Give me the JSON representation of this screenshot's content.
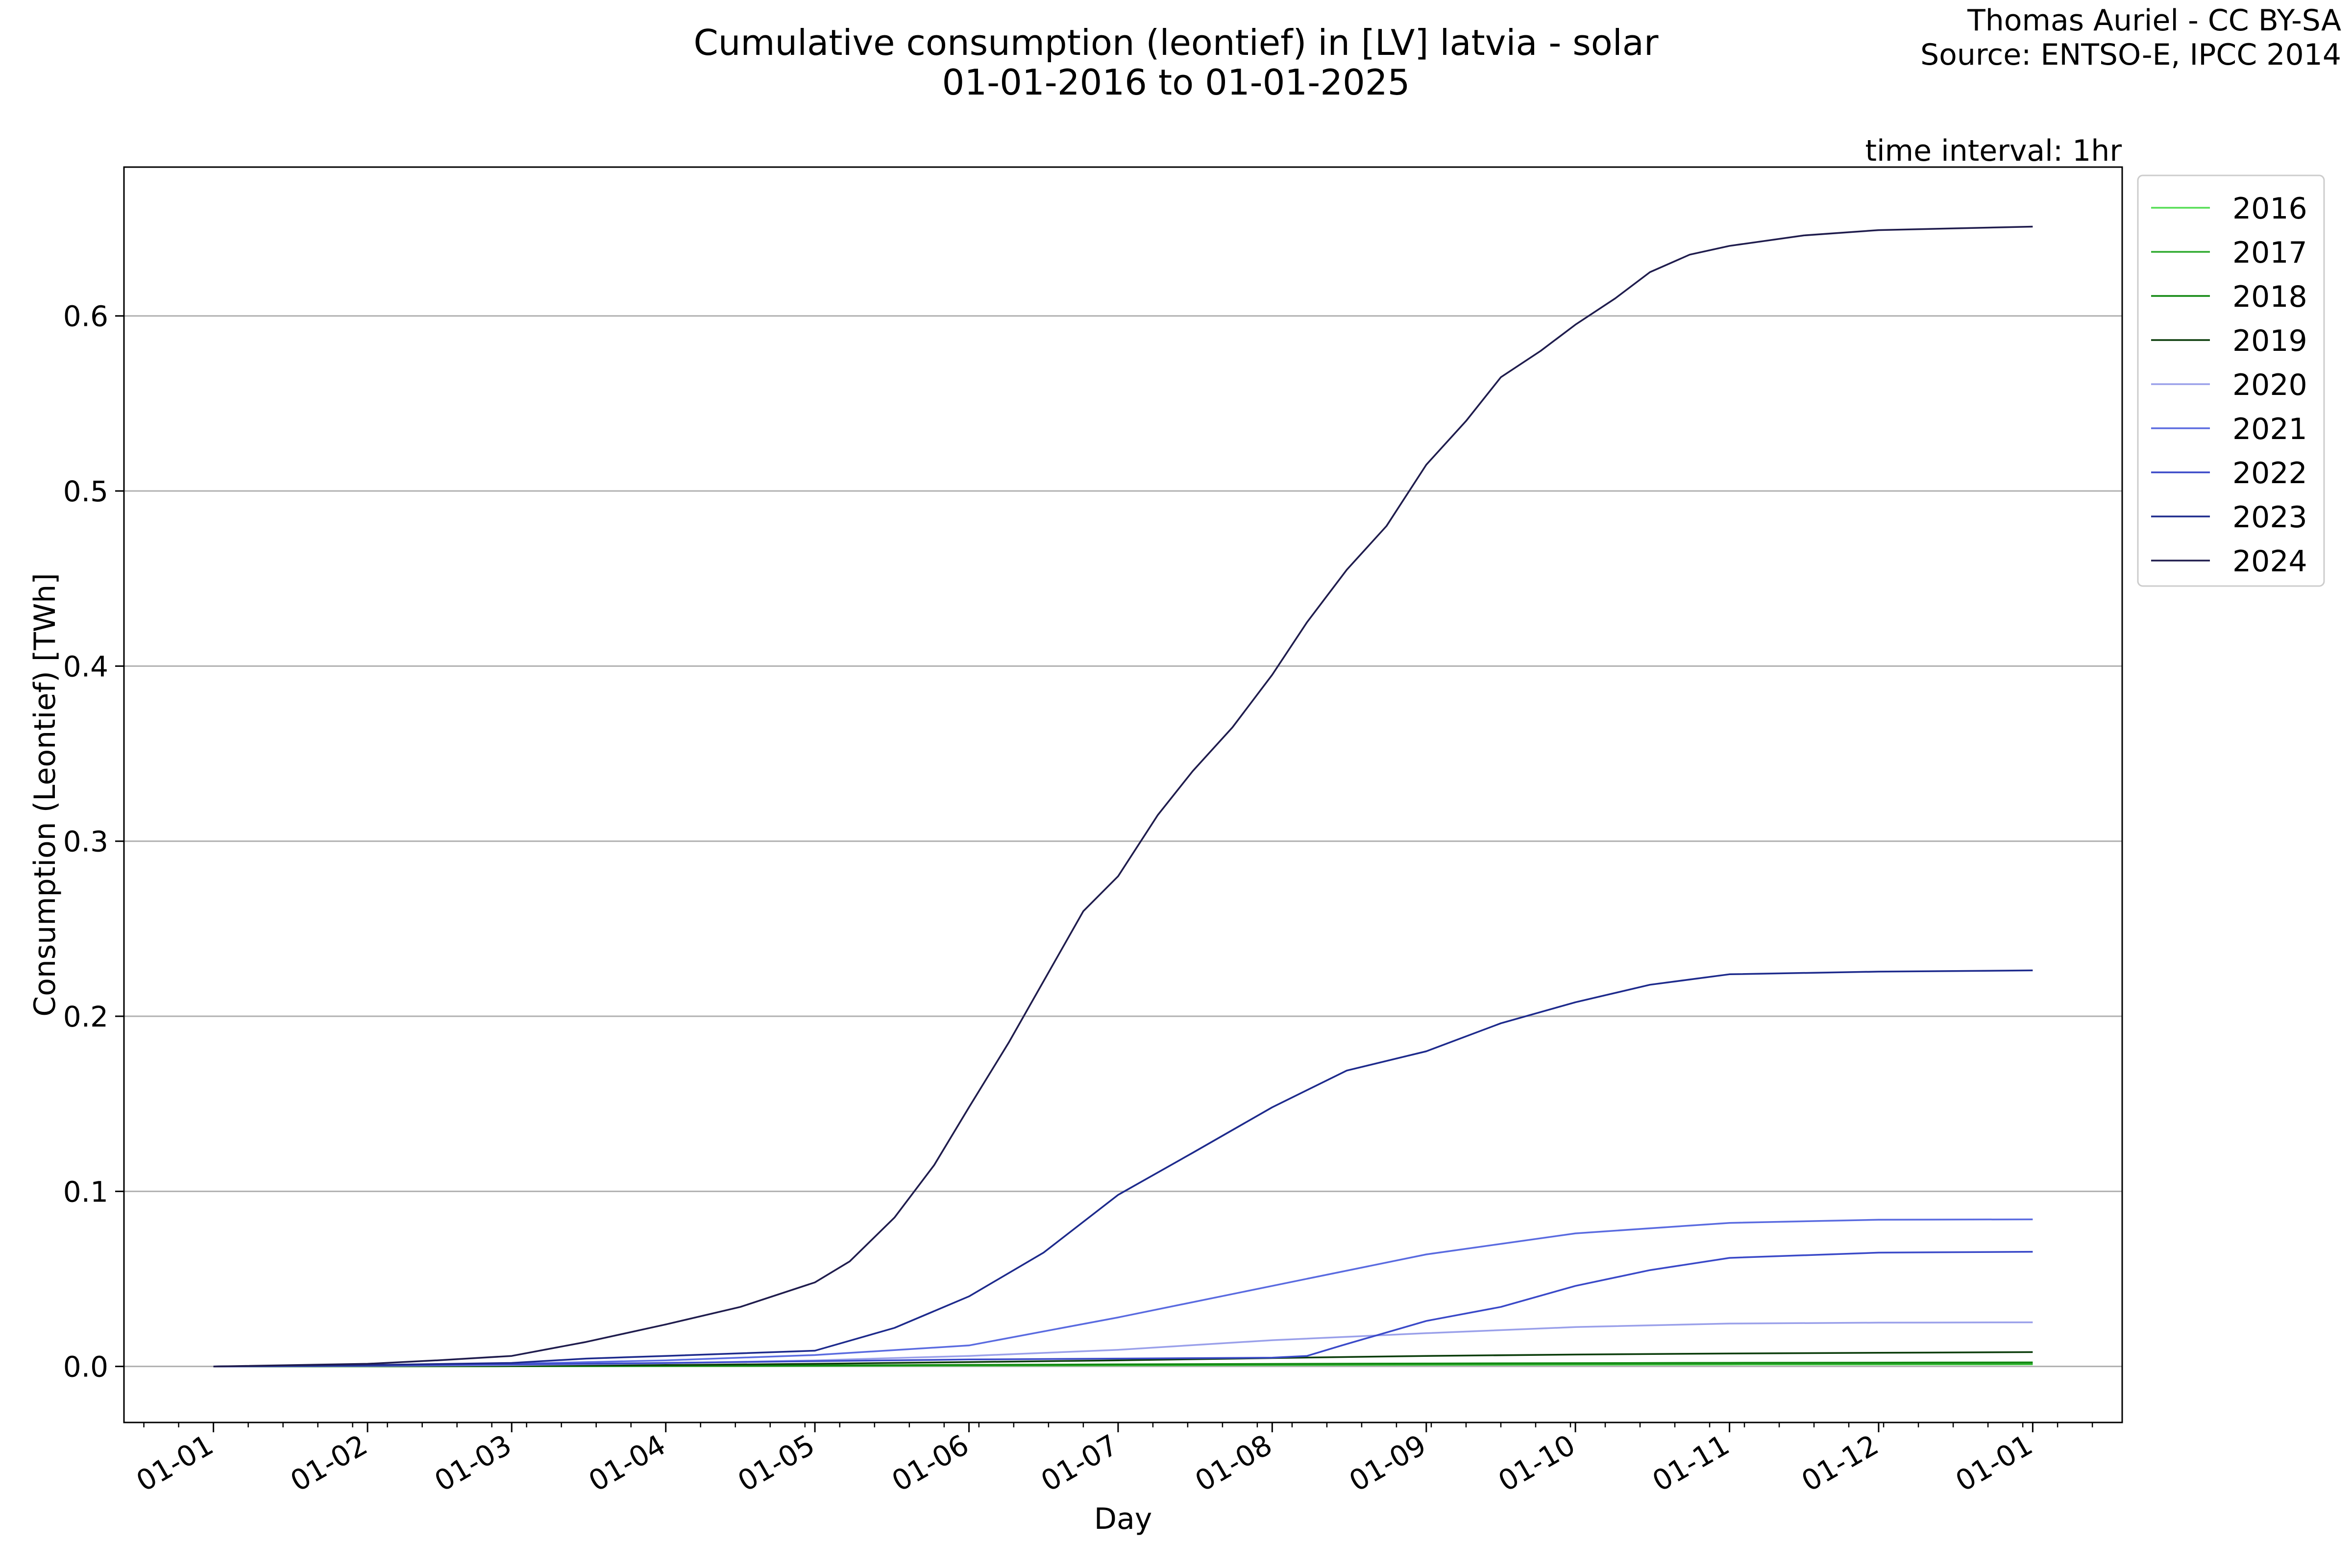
{
  "chart_data": {
    "type": "line",
    "title": "Cumulative consumption (leontief) in [LV] latvia - solar",
    "subtitle": "01-01-2016 to 01-01-2025",
    "credit": [
      "Thomas Auriel - CC BY-SA",
      "Source: ENTSO-E, IPCC 2014"
    ],
    "annotation": "time interval: 1hr",
    "xlabel": "Day",
    "ylabel": "Consumption (Leontief) [TWh]",
    "x_ticks": [
      "01-01",
      "01-02",
      "01-03",
      "01-04",
      "01-05",
      "01-06",
      "01-07",
      "01-08",
      "01-09",
      "01-10",
      "01-11",
      "01-12",
      "01-01"
    ],
    "x_tick_days": [
      0,
      31,
      60,
      91,
      121,
      152,
      182,
      213,
      244,
      274,
      305,
      335,
      366
    ],
    "xlim": [
      -18,
      384
    ],
    "ylim": [
      -0.032,
      0.685
    ],
    "y_ticks": [
      0.0,
      0.1,
      0.2,
      0.3,
      0.4,
      0.5,
      0.6
    ],
    "grid": "horizontal",
    "legend": "outside upper right",
    "series": [
      {
        "name": "2016",
        "color": "#55dd55",
        "points": [
          [
            0,
            0
          ],
          [
            60,
            0.0001
          ],
          [
            121,
            0.0003
          ],
          [
            182,
            0.0006
          ],
          [
            244,
            0.0009
          ],
          [
            305,
            0.0011
          ],
          [
            366,
            0.0012
          ]
        ]
      },
      {
        "name": "2017",
        "color": "#2faa2f",
        "points": [
          [
            0,
            0
          ],
          [
            60,
            0.0001
          ],
          [
            121,
            0.0004
          ],
          [
            182,
            0.0008
          ],
          [
            244,
            0.0011
          ],
          [
            305,
            0.0014
          ],
          [
            366,
            0.0015
          ]
        ]
      },
      {
        "name": "2018",
        "color": "#118811",
        "points": [
          [
            0,
            0
          ],
          [
            60,
            0.0002
          ],
          [
            121,
            0.0006
          ],
          [
            182,
            0.0012
          ],
          [
            244,
            0.0017
          ],
          [
            305,
            0.0021
          ],
          [
            366,
            0.0023
          ]
        ]
      },
      {
        "name": "2019",
        "color": "#0b3d0b",
        "points": [
          [
            0,
            0
          ],
          [
            60,
            0.0003
          ],
          [
            91,
            0.0008
          ],
          [
            121,
            0.0015
          ],
          [
            152,
            0.0025
          ],
          [
            182,
            0.0035
          ],
          [
            213,
            0.0048
          ],
          [
            244,
            0.006
          ],
          [
            274,
            0.0068
          ],
          [
            305,
            0.0074
          ],
          [
            335,
            0.0078
          ],
          [
            366,
            0.0082
          ]
        ]
      },
      {
        "name": "2020",
        "color": "#9aa0ea",
        "points": [
          [
            0,
            0
          ],
          [
            31,
            0.0003
          ],
          [
            60,
            0.0008
          ],
          [
            91,
            0.0018
          ],
          [
            121,
            0.0035
          ],
          [
            152,
            0.006
          ],
          [
            182,
            0.0095
          ],
          [
            213,
            0.015
          ],
          [
            244,
            0.019
          ],
          [
            274,
            0.0225
          ],
          [
            305,
            0.0245
          ],
          [
            335,
            0.025
          ],
          [
            366,
            0.0252
          ]
        ]
      },
      {
        "name": "2021",
        "color": "#5a6be0",
        "points": [
          [
            0,
            0
          ],
          [
            31,
            0.0005
          ],
          [
            60,
            0.0015
          ],
          [
            91,
            0.0035
          ],
          [
            121,
            0.0065
          ],
          [
            152,
            0.012
          ],
          [
            182,
            0.028
          ],
          [
            213,
            0.046
          ],
          [
            244,
            0.064
          ],
          [
            274,
            0.076
          ],
          [
            305,
            0.082
          ],
          [
            335,
            0.0838
          ],
          [
            366,
            0.084
          ]
        ]
      },
      {
        "name": "2022",
        "color": "#3a49c8",
        "points": [
          [
            0,
            0
          ],
          [
            31,
            0.0005
          ],
          [
            60,
            0.0012
          ],
          [
            91,
            0.002
          ],
          [
            121,
            0.003
          ],
          [
            152,
            0.004
          ],
          [
            182,
            0.0045
          ],
          [
            213,
            0.005
          ],
          [
            220,
            0.006
          ],
          [
            227,
            0.012
          ],
          [
            244,
            0.026
          ],
          [
            259,
            0.034
          ],
          [
            274,
            0.046
          ],
          [
            289,
            0.055
          ],
          [
            305,
            0.062
          ],
          [
            335,
            0.065
          ],
          [
            366,
            0.0655
          ]
        ]
      },
      {
        "name": "2023",
        "color": "#1d2a8c",
        "points": [
          [
            0,
            0
          ],
          [
            31,
            0.0008
          ],
          [
            60,
            0.002
          ],
          [
            75,
            0.0045
          ],
          [
            91,
            0.006
          ],
          [
            121,
            0.009
          ],
          [
            137,
            0.022
          ],
          [
            152,
            0.04
          ],
          [
            167,
            0.065
          ],
          [
            182,
            0.098
          ],
          [
            197,
            0.122
          ],
          [
            213,
            0.148
          ],
          [
            228,
            0.169
          ],
          [
            244,
            0.18
          ],
          [
            259,
            0.196
          ],
          [
            274,
            0.208
          ],
          [
            289,
            0.218
          ],
          [
            305,
            0.224
          ],
          [
            335,
            0.2255
          ],
          [
            366,
            0.2262
          ]
        ]
      },
      {
        "name": "2024",
        "color": "#1f1c4d",
        "points": [
          [
            0,
            0
          ],
          [
            31,
            0.0015
          ],
          [
            45,
            0.0035
          ],
          [
            60,
            0.006
          ],
          [
            75,
            0.014
          ],
          [
            91,
            0.024
          ],
          [
            106,
            0.034
          ],
          [
            121,
            0.048
          ],
          [
            128,
            0.06
          ],
          [
            137,
            0.085
          ],
          [
            145,
            0.115
          ],
          [
            152,
            0.148
          ],
          [
            160,
            0.185
          ],
          [
            167,
            0.22
          ],
          [
            175,
            0.26
          ],
          [
            182,
            0.28
          ],
          [
            190,
            0.315
          ],
          [
            197,
            0.34
          ],
          [
            205,
            0.365
          ],
          [
            213,
            0.395
          ],
          [
            220,
            0.425
          ],
          [
            228,
            0.455
          ],
          [
            236,
            0.48
          ],
          [
            244,
            0.515
          ],
          [
            252,
            0.54
          ],
          [
            259,
            0.565
          ],
          [
            267,
            0.58
          ],
          [
            274,
            0.595
          ],
          [
            282,
            0.61
          ],
          [
            289,
            0.625
          ],
          [
            297,
            0.635
          ],
          [
            305,
            0.64
          ],
          [
            320,
            0.646
          ],
          [
            335,
            0.649
          ],
          [
            350,
            0.65
          ],
          [
            366,
            0.651
          ]
        ]
      }
    ]
  }
}
